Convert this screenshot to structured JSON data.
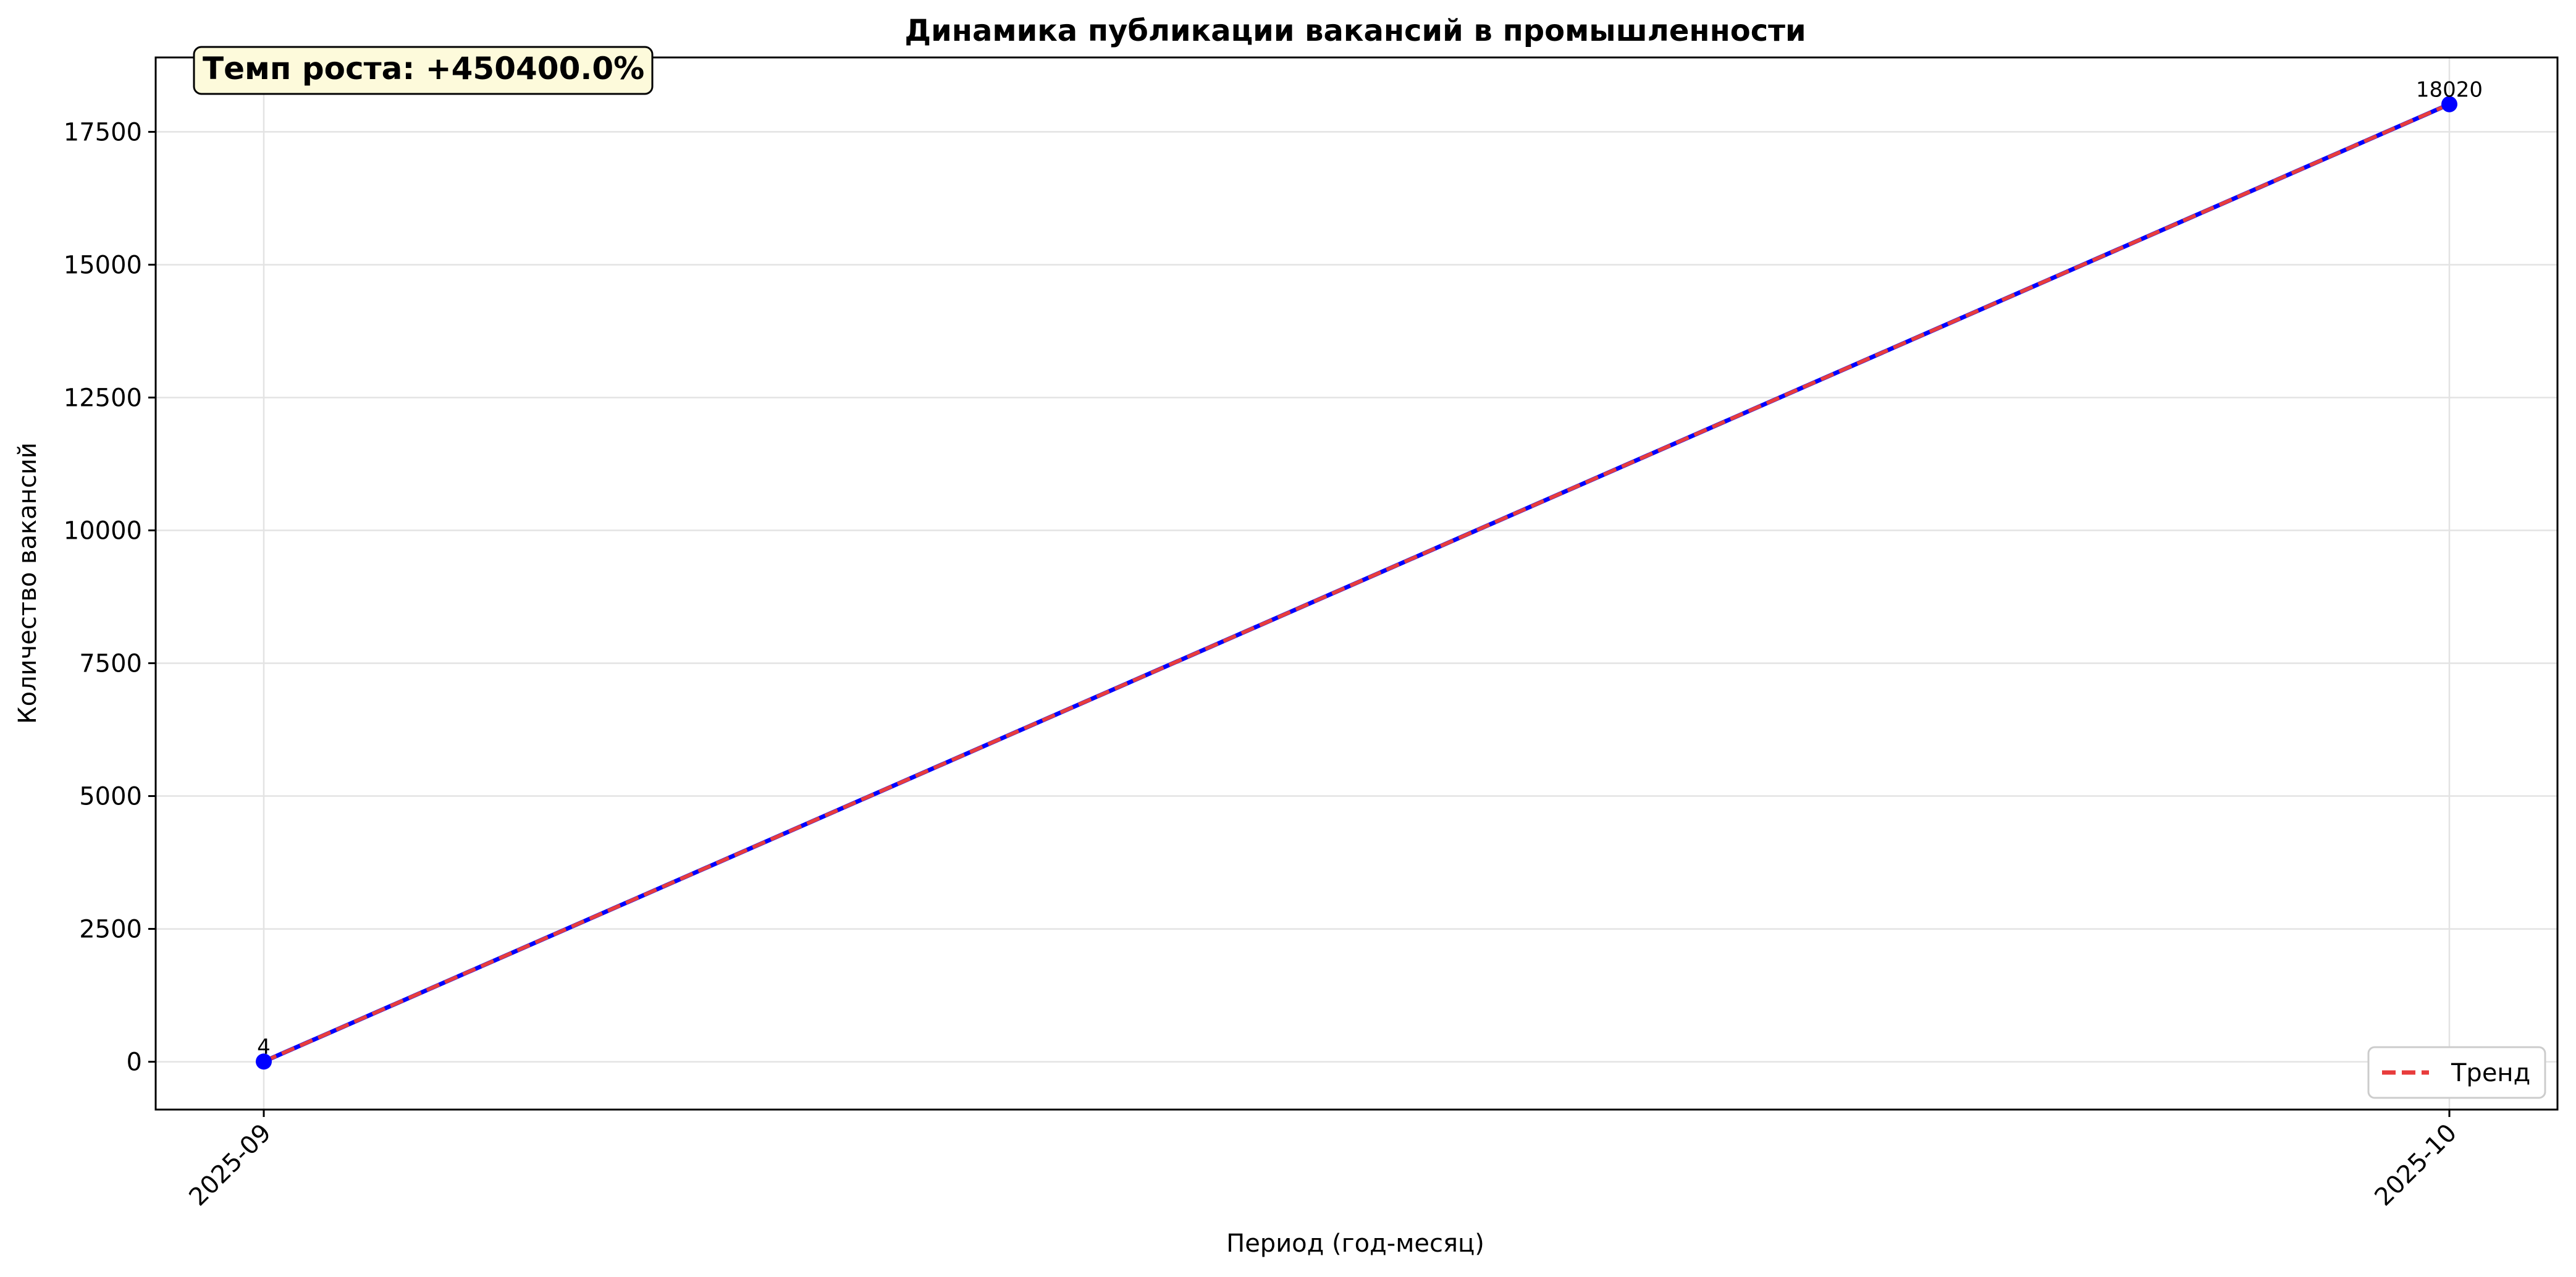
{
  "chart_data": {
    "type": "line",
    "title": "Динамика публикации вакансий в промышленности",
    "xlabel": "Период (год-месяц)",
    "ylabel": "Количество вакансий",
    "categories": [
      "2025-09",
      "2025-10"
    ],
    "yticks": [
      0,
      2500,
      5000,
      7500,
      10000,
      12500,
      15000,
      17500
    ],
    "ylim": [
      -900,
      18900
    ],
    "series": [
      {
        "values": [
          4,
          18020
        ],
        "color": "#0000ff",
        "marker": "circle"
      },
      {
        "name": "Тренд",
        "values": [
          4,
          18020
        ],
        "color": "#e83c3c",
        "style": "dashed"
      }
    ],
    "data_labels": [
      "4",
      "18020"
    ],
    "annotation": "Темп роста: +450400.0%",
    "legend": {
      "position": "bottom-right",
      "entries": [
        "Тренд"
      ]
    },
    "grid": true
  }
}
